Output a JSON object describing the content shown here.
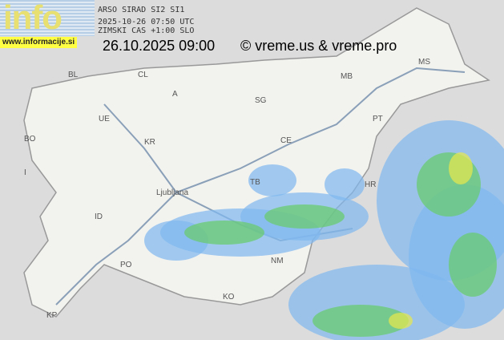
{
  "header": {
    "source": "ARSO SIRAD SI2 SI1",
    "utc_time": "2025-10-26 07:50 UTC",
    "timezone_note": "ZIMSKI CAS +1:00 SLO",
    "local_datetime": "26.10.2025 09:00",
    "copyright": "© vreme.us & vreme.pro"
  },
  "logo": {
    "text": "info",
    "url": "www.informacije.si"
  },
  "cities": [
    {
      "label": "BL"
    },
    {
      "label": "CL"
    },
    {
      "label": "UE"
    },
    {
      "label": "BO"
    },
    {
      "label": "KR"
    },
    {
      "label": "A"
    },
    {
      "label": "SG"
    },
    {
      "label": "MB"
    },
    {
      "label": "MS"
    },
    {
      "label": "PT"
    },
    {
      "label": "CE"
    },
    {
      "label": "TB"
    },
    {
      "label": "Ljubljana"
    },
    {
      "label": "ID"
    },
    {
      "label": "PO"
    },
    {
      "label": "NM"
    },
    {
      "label": "KO"
    },
    {
      "label": "KP"
    },
    {
      "label": "HR"
    },
    {
      "label": "I"
    }
  ],
  "colors": {
    "land": "#f1f1ee",
    "background": "#dcdcdc",
    "radar_light": "#7fb8f0",
    "radar_mid": "#66cc66",
    "radar_heavy": "#e8e84a"
  }
}
